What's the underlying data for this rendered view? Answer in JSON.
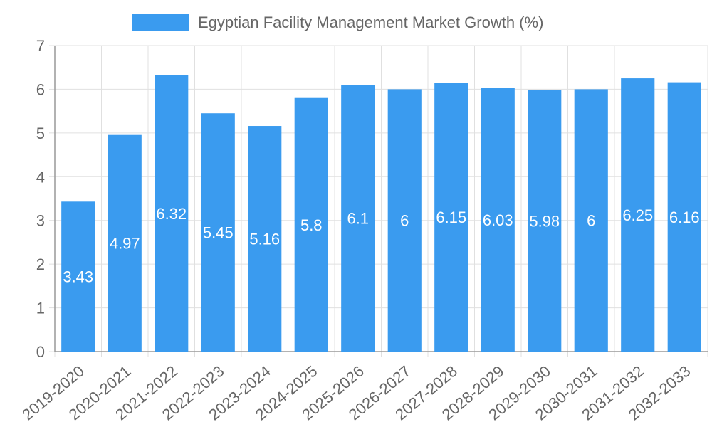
{
  "chart_data": {
    "type": "bar",
    "title": "",
    "xlabel": "",
    "ylabel": "",
    "ylim": [
      0,
      7
    ],
    "yticks": [
      0,
      1,
      2,
      3,
      4,
      5,
      6,
      7
    ],
    "grid": true,
    "legend_position": "top-center",
    "categories": [
      "2019-2020",
      "2020-2021",
      "2021-2022",
      "2022-2023",
      "2023-2024",
      "2024-2025",
      "2025-2026",
      "2026-2027",
      "2027-2028",
      "2028-2029",
      "2029-2030",
      "2030-2031",
      "2031-2032",
      "2032-2033"
    ],
    "series": [
      {
        "name": "Egyptian Facility Management Market Growth (%)",
        "values": [
          3.43,
          4.97,
          6.32,
          5.45,
          5.16,
          5.8,
          6.1,
          6,
          6.15,
          6.03,
          5.98,
          6,
          6.25,
          6.16
        ],
        "labels": [
          "3.43",
          "4.97",
          "6.32",
          "5.45",
          "5.16",
          "5.8",
          "6.1",
          "6",
          "6.15",
          "6.03",
          "5.98",
          "6",
          "6.25",
          "6.16"
        ],
        "color": "#3a9bef"
      }
    ]
  },
  "colors": {
    "bar": "#3a9bef",
    "grid": "#e0e0e0",
    "axis": "#999999",
    "text": "#666666",
    "label": "#ffffff"
  }
}
